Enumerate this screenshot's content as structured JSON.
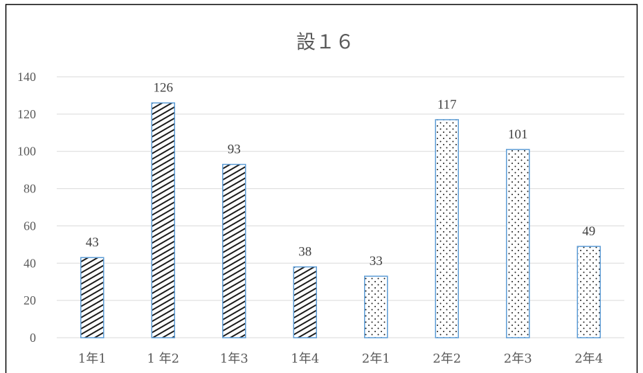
{
  "chart_data": {
    "type": "bar",
    "title": "設１６",
    "xlabel": "",
    "ylabel": "",
    "categories": [
      "1年1",
      "1 年2",
      "1年3",
      "1年4",
      "2年1",
      "2年2",
      "2年3",
      "2年4"
    ],
    "values": [
      43,
      126,
      93,
      38,
      33,
      117,
      101,
      49
    ],
    "data_labels": [
      "43",
      "126",
      "93",
      "38",
      "33",
      "117",
      "101",
      "49"
    ],
    "patterns": [
      "diagonal",
      "diagonal",
      "diagonal",
      "diagonal",
      "dots",
      "dots",
      "dots",
      "dots"
    ],
    "ylim": [
      0,
      140
    ],
    "yticks": [
      0,
      20,
      40,
      60,
      80,
      100,
      120,
      140
    ],
    "ytick_labels": [
      "0",
      "20",
      "40",
      "60",
      "80",
      "100",
      "120",
      "140"
    ],
    "grid": true,
    "legend": "none",
    "colors": {
      "bar_outline": "#5b9bd5",
      "pattern": "#1a1a1a",
      "grid": "#d9d9d9",
      "text": "#595959"
    }
  }
}
